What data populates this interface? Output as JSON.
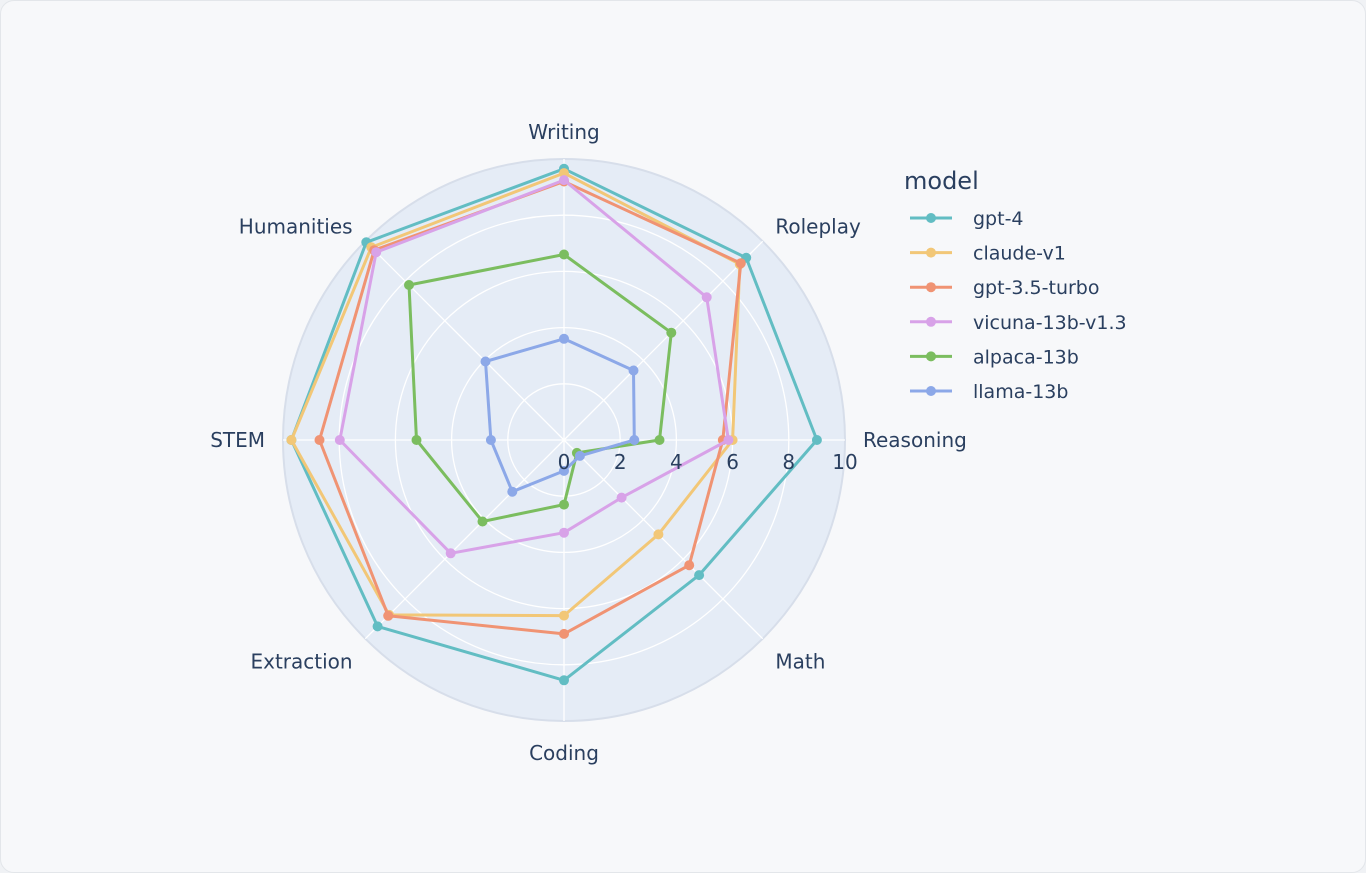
{
  "chart_data": {
    "type": "radar",
    "categories": [
      "Writing",
      "Roleplay",
      "Reasoning",
      "Math",
      "Coding",
      "Extraction",
      "STEM",
      "Humanities"
    ],
    "radial_ticks": [
      "0",
      "2",
      "4",
      "6",
      "8",
      "10"
    ],
    "rlim": [
      0,
      10
    ],
    "legend_title": "model",
    "legend_position": "right",
    "series": [
      {
        "name": "gpt-4",
        "color": "#62bdc3",
        "values": [
          9.65,
          9.17,
          9.0,
          6.8,
          8.55,
          9.38,
          9.7,
          9.95
        ]
      },
      {
        "name": "claude-v1",
        "color": "#f2c777",
        "values": [
          9.5,
          8.85,
          6.0,
          4.75,
          6.25,
          8.8,
          9.7,
          9.7
        ]
      },
      {
        "name": "gpt-3.5-turbo",
        "color": "#f09373",
        "values": [
          9.2,
          8.9,
          5.65,
          6.3,
          6.9,
          8.85,
          8.7,
          9.55
        ]
      },
      {
        "name": "vicuna-13b-v1.3",
        "color": "#d8a2e8",
        "values": [
          9.25,
          7.18,
          5.85,
          2.9,
          3.3,
          5.7,
          7.98,
          9.45
        ]
      },
      {
        "name": "alpaca-13b",
        "color": "#7bbd5f",
        "values": [
          6.6,
          5.4,
          3.4,
          0.65,
          2.3,
          4.1,
          5.25,
          7.8
        ]
      },
      {
        "name": "llama-13b",
        "color": "#8ca8e8",
        "values": [
          3.6,
          3.5,
          2.5,
          0.8,
          1.1,
          2.6,
          2.6,
          3.95
        ]
      }
    ]
  }
}
